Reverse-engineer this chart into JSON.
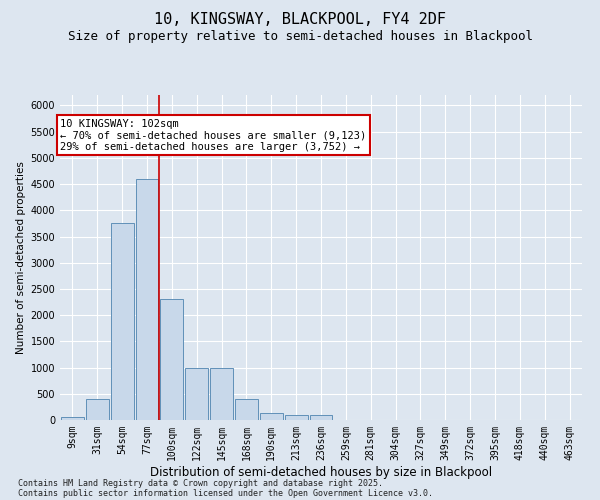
{
  "title": "10, KINGSWAY, BLACKPOOL, FY4 2DF",
  "subtitle": "Size of property relative to semi-detached houses in Blackpool",
  "xlabel": "Distribution of semi-detached houses by size in Blackpool",
  "ylabel": "Number of semi-detached properties",
  "bar_labels": [
    "9sqm",
    "31sqm",
    "54sqm",
    "77sqm",
    "100sqm",
    "122sqm",
    "145sqm",
    "168sqm",
    "190sqm",
    "213sqm",
    "236sqm",
    "259sqm",
    "281sqm",
    "304sqm",
    "327sqm",
    "349sqm",
    "372sqm",
    "395sqm",
    "418sqm",
    "440sqm",
    "463sqm"
  ],
  "bar_values": [
    50,
    400,
    3750,
    4600,
    2300,
    1000,
    1000,
    400,
    130,
    100,
    100,
    0,
    0,
    0,
    0,
    0,
    0,
    0,
    0,
    0,
    0
  ],
  "bar_color": "#c8d8ea",
  "bar_edgecolor": "#6090b8",
  "vline_x_index": 4,
  "vline_color": "#cc0000",
  "annotation_line1": "10 KINGSWAY: 102sqm",
  "annotation_line2": "← 70% of semi-detached houses are smaller (9,123)",
  "annotation_line3": "29% of semi-detached houses are larger (3,752) →",
  "annotation_box_color": "#ffffff",
  "annotation_box_edgecolor": "#cc0000",
  "ylim": [
    0,
    6200
  ],
  "yticks": [
    0,
    500,
    1000,
    1500,
    2000,
    2500,
    3000,
    3500,
    4000,
    4500,
    5000,
    5500,
    6000
  ],
  "background_color": "#dde6f0",
  "grid_color": "#ffffff",
  "footer_line1": "Contains HM Land Registry data © Crown copyright and database right 2025.",
  "footer_line2": "Contains public sector information licensed under the Open Government Licence v3.0.",
  "title_fontsize": 11,
  "subtitle_fontsize": 9,
  "xlabel_fontsize": 8.5,
  "ylabel_fontsize": 7.5,
  "tick_fontsize": 7,
  "annot_fontsize": 7.5,
  "footer_fontsize": 6
}
